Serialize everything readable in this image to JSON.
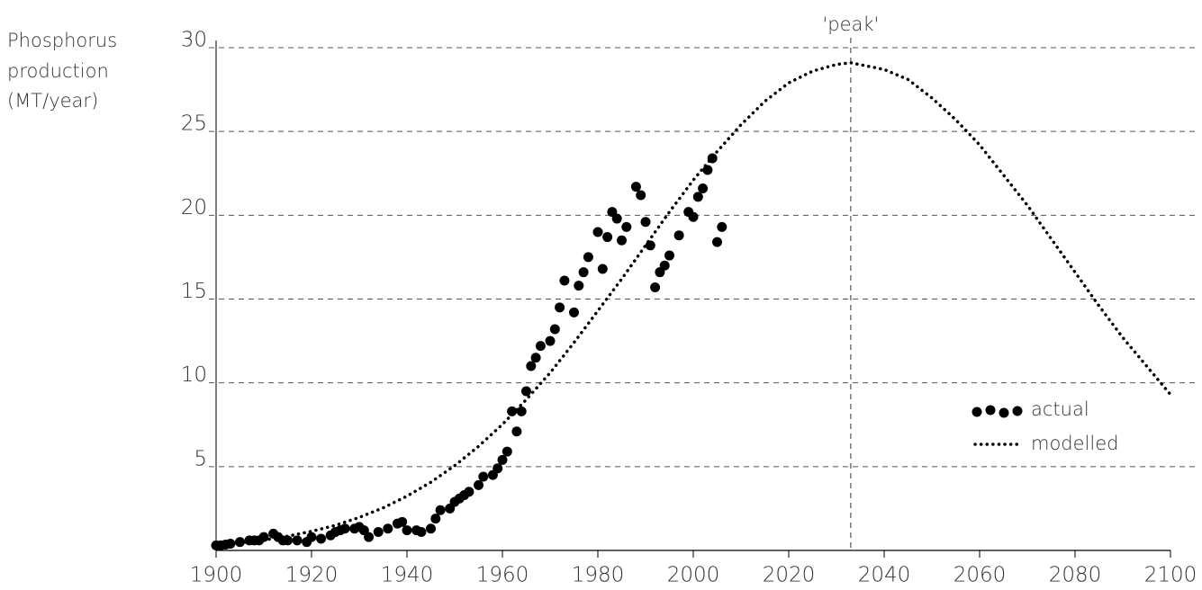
{
  "chart_data": {
    "type": "scatter_line",
    "ylabel": [
      "Phosphorus",
      "production",
      "(MT/year)"
    ],
    "xlim": [
      1900,
      2100
    ],
    "xticks": [
      1900,
      1920,
      1940,
      1960,
      1980,
      2000,
      2020,
      2040,
      2060,
      2080,
      2100
    ],
    "ylim": [
      0,
      30
    ],
    "yticks": [
      5,
      10,
      15,
      20,
      25,
      30
    ],
    "grid": true,
    "annotations": [
      {
        "text": "'peak'",
        "x": 2033
      }
    ],
    "legend": "lower right",
    "series": [
      {
        "name": "actual",
        "kind": "scatter",
        "color": "#000000",
        "x": [
          1900,
          1901,
          1902,
          1903,
          1905,
          1907,
          1908,
          1909,
          1910,
          1912,
          1913,
          1914,
          1915,
          1917,
          1919,
          1920,
          1922,
          1924,
          1925,
          1926,
          1927,
          1929,
          1930,
          1931,
          1932,
          1934,
          1936,
          1938,
          1939,
          1940,
          1942,
          1943,
          1945,
          1946,
          1947,
          1949,
          1950,
          1951,
          1952,
          1953,
          1955,
          1956,
          1958,
          1959,
          1960,
          1961,
          1962,
          1963,
          1964,
          1965,
          1966,
          1967,
          1968,
          1970,
          1971,
          1972,
          1973,
          1975,
          1976,
          1977,
          1978,
          1980,
          1981,
          1982,
          1983,
          1984,
          1985,
          1986,
          1988,
          1989,
          1990,
          1991,
          1992,
          1993,
          1994,
          1995,
          1997,
          1999,
          2000,
          2001,
          2002,
          2003,
          2004,
          2005,
          2006
        ],
        "values": [
          0.3,
          0.3,
          0.35,
          0.4,
          0.5,
          0.6,
          0.6,
          0.6,
          0.8,
          1.0,
          0.8,
          0.6,
          0.6,
          0.6,
          0.5,
          0.8,
          0.7,
          0.9,
          1.1,
          1.2,
          1.3,
          1.3,
          1.4,
          1.2,
          0.8,
          1.1,
          1.3,
          1.6,
          1.7,
          1.2,
          1.2,
          1.1,
          1.3,
          1.9,
          2.4,
          2.5,
          2.9,
          3.1,
          3.3,
          3.5,
          3.9,
          4.4,
          4.5,
          4.9,
          5.4,
          5.9,
          8.3,
          7.1,
          8.3,
          9.5,
          11.0,
          11.5,
          12.2,
          12.5,
          13.2,
          14.5,
          16.1,
          14.2,
          15.8,
          16.6,
          17.5,
          19.0,
          16.8,
          18.7,
          20.2,
          19.8,
          18.5,
          19.3,
          21.7,
          21.2,
          19.6,
          18.2,
          15.7,
          16.6,
          17.0,
          17.6,
          18.8,
          20.2,
          19.9,
          21.1,
          21.6,
          22.7,
          23.4,
          18.4,
          19.3
        ]
      },
      {
        "name": "modelled",
        "kind": "line",
        "color": "#000000",
        "x": [
          1900,
          1905,
          1910,
          1915,
          1920,
          1925,
          1930,
          1935,
          1940,
          1945,
          1950,
          1955,
          1960,
          1965,
          1970,
          1975,
          1980,
          1985,
          1990,
          1995,
          2000,
          2005,
          2010,
          2015,
          2020,
          2025,
          2030,
          2033,
          2040,
          2045,
          2050,
          2055,
          2060,
          2065,
          2070,
          2075,
          2080,
          2085,
          2090,
          2095,
          2100
        ],
        "values": [
          0.33,
          0.45,
          0.62,
          0.85,
          1.14,
          1.5,
          1.97,
          2.54,
          3.24,
          4.07,
          5.06,
          6.21,
          7.52,
          9.0,
          10.6,
          12.4,
          14.3,
          16.2,
          18.2,
          20.2,
          22.1,
          23.8,
          25.4,
          26.8,
          27.9,
          28.6,
          29.0,
          29.1,
          28.7,
          28.1,
          27.0,
          25.7,
          24.2,
          22.4,
          20.6,
          18.6,
          16.6,
          14.6,
          12.7,
          11.0,
          9.3
        ]
      }
    ]
  }
}
